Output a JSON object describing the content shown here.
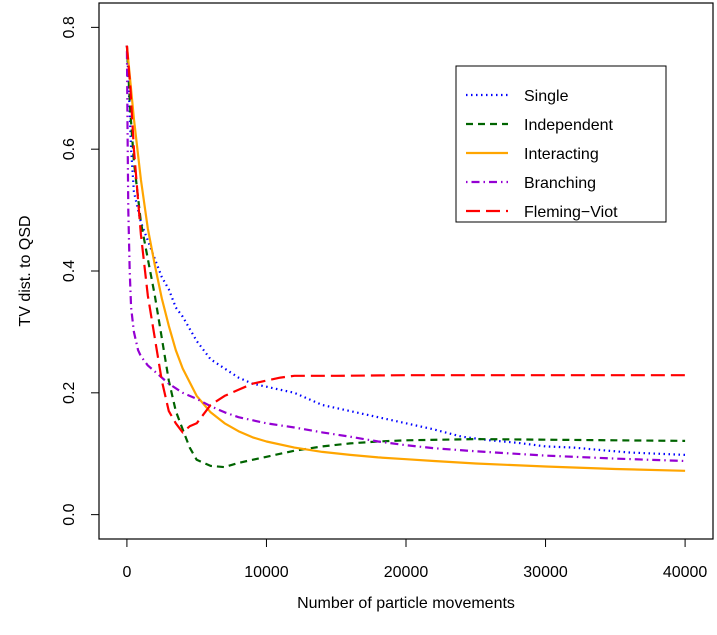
{
  "chart_data": {
    "type": "line",
    "title": "",
    "xlabel": "Number of particle movements",
    "ylabel": "TV dist. to QSD",
    "xlim": [
      -2000,
      42000
    ],
    "ylim": [
      -0.04,
      0.84
    ],
    "xticks": [
      0,
      10000,
      20000,
      30000,
      40000
    ],
    "xtick_labels": [
      "0",
      "10000",
      "20000",
      "30000",
      "40000"
    ],
    "yticks": [
      0.0,
      0.2,
      0.4,
      0.6,
      0.8
    ],
    "ytick_labels": [
      "0.0",
      "0.2",
      "0.4",
      "0.6",
      "0.8"
    ],
    "grid": false,
    "legend_position": "top-right",
    "series": [
      {
        "name": "Single",
        "color": "#0000ff",
        "dash": "dotted",
        "x": [
          0,
          100,
          300,
          500,
          1000,
          1500,
          2000,
          2500,
          3000,
          3500,
          4000,
          5000,
          6000,
          7000,
          8000,
          9000,
          10000,
          11000,
          12000,
          14000,
          16000,
          18000,
          20000,
          22000,
          24000,
          26000,
          28000,
          30000,
          32000,
          34000,
          36000,
          38000,
          40000
        ],
        "y": [
          0.77,
          0.72,
          0.6,
          0.53,
          0.48,
          0.45,
          0.42,
          0.39,
          0.37,
          0.34,
          0.325,
          0.285,
          0.255,
          0.24,
          0.225,
          0.215,
          0.21,
          0.205,
          0.2,
          0.18,
          0.17,
          0.16,
          0.15,
          0.14,
          0.128,
          0.122,
          0.118,
          0.112,
          0.11,
          0.106,
          0.102,
          0.1,
          0.098
        ]
      },
      {
        "name": "Independent",
        "color": "#006400",
        "dash": "dashed",
        "x": [
          0,
          250,
          500,
          1000,
          1500,
          2000,
          2500,
          3000,
          3500,
          4000,
          4500,
          5000,
          6000,
          7000,
          8000,
          9000,
          10000,
          12000,
          14000,
          16000,
          18000,
          20000,
          25000,
          30000,
          35000,
          40000
        ],
        "y": [
          0.77,
          0.66,
          0.58,
          0.48,
          0.42,
          0.36,
          0.29,
          0.22,
          0.17,
          0.14,
          0.11,
          0.09,
          0.08,
          0.078,
          0.085,
          0.09,
          0.095,
          0.105,
          0.112,
          0.117,
          0.12,
          0.122,
          0.124,
          0.123,
          0.122,
          0.121
        ]
      },
      {
        "name": "Interacting",
        "color": "#ffa500",
        "dash": "solid",
        "x": [
          0,
          250,
          500,
          1000,
          1500,
          2000,
          2500,
          3000,
          3500,
          4000,
          5000,
          6000,
          7000,
          8000,
          9000,
          10000,
          12000,
          14000,
          16000,
          18000,
          20000,
          22000,
          25000,
          30000,
          35000,
          40000
        ],
        "y": [
          0.77,
          0.71,
          0.65,
          0.55,
          0.47,
          0.41,
          0.355,
          0.31,
          0.27,
          0.24,
          0.195,
          0.168,
          0.15,
          0.137,
          0.127,
          0.12,
          0.11,
          0.103,
          0.098,
          0.094,
          0.091,
          0.088,
          0.084,
          0.079,
          0.075,
          0.072
        ]
      },
      {
        "name": "Branching",
        "color": "#9400d3",
        "dash": "dotdash",
        "x": [
          0,
          50,
          100,
          200,
          300,
          500,
          800,
          1000,
          1500,
          2000,
          3000,
          4000,
          5000,
          6000,
          7000,
          8000,
          10000,
          12000,
          14000,
          16000,
          18000,
          20000,
          22000,
          25000,
          30000,
          35000,
          40000
        ],
        "y": [
          0.77,
          0.62,
          0.5,
          0.4,
          0.34,
          0.3,
          0.27,
          0.26,
          0.245,
          0.235,
          0.215,
          0.2,
          0.19,
          0.178,
          0.168,
          0.16,
          0.15,
          0.143,
          0.135,
          0.128,
          0.12,
          0.114,
          0.109,
          0.104,
          0.097,
          0.092,
          0.088
        ]
      },
      {
        "name": "Fleming−Viot",
        "color": "#ff0000",
        "dash": "longdash",
        "x": [
          0,
          250,
          500,
          1000,
          1500,
          2000,
          2500,
          3000,
          3500,
          4000,
          4500,
          5000,
          5500,
          6000,
          7000,
          8000,
          9000,
          10000,
          11000,
          12000,
          15000,
          20000,
          25000,
          30000,
          35000,
          40000
        ],
        "y": [
          0.77,
          0.7,
          0.6,
          0.46,
          0.36,
          0.29,
          0.22,
          0.17,
          0.15,
          0.135,
          0.145,
          0.15,
          0.165,
          0.18,
          0.195,
          0.205,
          0.215,
          0.22,
          0.225,
          0.228,
          0.228,
          0.229,
          0.229,
          0.229,
          0.229,
          0.229
        ]
      }
    ]
  }
}
